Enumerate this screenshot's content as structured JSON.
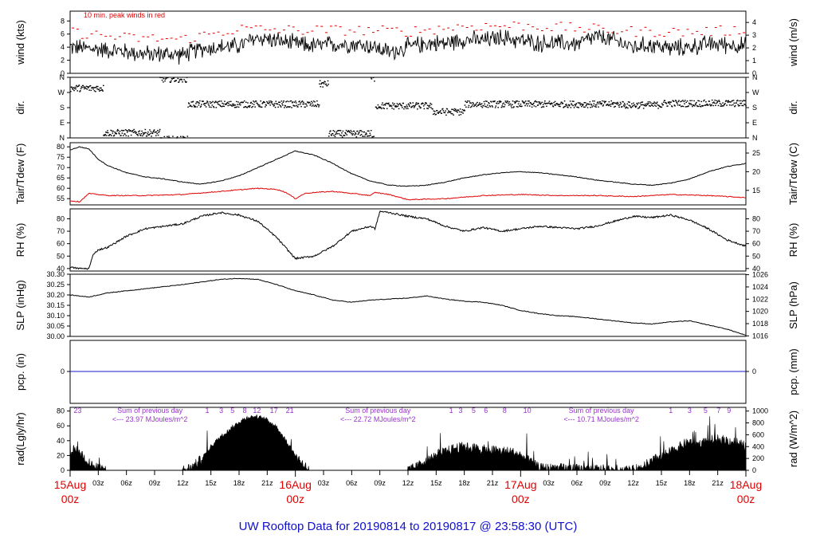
{
  "chart_data": {
    "type": "line",
    "title": "UW Rooftop Data for 20190814  to  20190817 @ 23:58:30  (UTC)",
    "x_hours_range": [
      0,
      72
    ],
    "x_ticks": [
      {
        "h": 3,
        "label": "03z"
      },
      {
        "h": 6,
        "label": "06z"
      },
      {
        "h": 9,
        "label": "09z"
      },
      {
        "h": 12,
        "label": "12z"
      },
      {
        "h": 15,
        "label": "15z"
      },
      {
        "h": 18,
        "label": "18z"
      },
      {
        "h": 21,
        "label": "21z"
      },
      {
        "h": 27,
        "label": "03z"
      },
      {
        "h": 30,
        "label": "06z"
      },
      {
        "h": 33,
        "label": "09z"
      },
      {
        "h": 36,
        "label": "12z"
      },
      {
        "h": 39,
        "label": "15z"
      },
      {
        "h": 42,
        "label": "18z"
      },
      {
        "h": 45,
        "label": "21z"
      },
      {
        "h": 51,
        "label": "03z"
      },
      {
        "h": 54,
        "label": "06z"
      },
      {
        "h": 57,
        "label": "09z"
      },
      {
        "h": 60,
        "label": "12z"
      },
      {
        "h": 63,
        "label": "15z"
      },
      {
        "h": 66,
        "label": "18z"
      },
      {
        "h": 69,
        "label": "21z"
      }
    ],
    "day_labels": [
      {
        "h": 0,
        "date": "15Aug",
        "time": "00z"
      },
      {
        "h": 24,
        "date": "16Aug",
        "time": "00z"
      },
      {
        "h": 48,
        "date": "17Aug",
        "time": "00z"
      },
      {
        "h": 72,
        "date": "18Aug",
        "time": "00z"
      }
    ],
    "panels": {
      "wind": {
        "ylabel_left": "wind (kts)",
        "ylabel_right": "wind (m/s)",
        "ylim": [
          0,
          9.5
        ],
        "left_ticks": [
          "0",
          "2",
          "4",
          "6",
          "8"
        ],
        "right_ticks": [
          "0",
          "1",
          "2",
          "3",
          "4"
        ],
        "note": "10 min. peak winds in red",
        "series": [
          {
            "name": "wind",
            "color": "#000000",
            "key_hours": [
              0,
              2,
              4,
              6,
              8,
              10,
              12,
              14,
              16,
              18,
              20,
              22,
              24,
              26,
              28,
              30,
              32,
              34,
              36,
              38,
              40,
              42,
              44,
              46,
              48,
              50,
              52,
              54,
              56,
              58,
              60,
              62,
              64,
              66,
              68,
              70,
              72
            ],
            "values": [
              4.0,
              3.8,
              3.6,
              3.3,
              2.9,
              3.0,
              2.8,
              3.8,
              4.0,
              4.2,
              5.5,
              5.0,
              4.5,
              4.2,
              4.4,
              4.5,
              4.2,
              3.2,
              4.0,
              4.6,
              4.6,
              5.2,
              5.0,
              5.5,
              5.0,
              4.6,
              4.6,
              4.5,
              5.6,
              5.0,
              4.0,
              4.4,
              3.8,
              4.0,
              4.5,
              4.4,
              4.2
            ]
          },
          {
            "name": "peak",
            "color": "#e00000",
            "key_hours": [
              0,
              6,
              12,
              18,
              24,
              30,
              36,
              42,
              48,
              54,
              60,
              66,
              72
            ],
            "values": [
              6.3,
              5.4,
              5.2,
              6.8,
              6.6,
              6.6,
              6.4,
              7.2,
              7.3,
              6.9,
              6.4,
              6.3,
              6.6
            ]
          }
        ]
      },
      "dir": {
        "ylabel_left": "dir.",
        "ylabel_right": "dir.",
        "ylim": [
          0,
          360
        ],
        "left_ticks": [
          "N",
          "E",
          "S",
          "W",
          "N"
        ],
        "right_ticks": [
          "N",
          "E",
          "S",
          "W",
          "N"
        ],
        "segments": [
          {
            "h0": 0.0,
            "h1": 3.5,
            "deg": 295
          },
          {
            "h0": 3.5,
            "h1": 9.5,
            "deg": 30
          },
          {
            "h0": 9.5,
            "h1": 12.5,
            "deg": 350
          },
          {
            "h0": 12.5,
            "h1": 26.5,
            "deg": 200
          },
          {
            "h0": 26.5,
            "h1": 27.5,
            "deg": 320
          },
          {
            "h0": 27.5,
            "h1": 32.0,
            "deg": 25
          },
          {
            "h0": 32.0,
            "h1": 32.4,
            "deg": 355
          },
          {
            "h0": 32.5,
            "h1": 38.5,
            "deg": 190
          },
          {
            "h0": 38.5,
            "h1": 42.0,
            "deg": 155
          },
          {
            "h0": 42.0,
            "h1": 59.0,
            "deg": 200
          },
          {
            "h0": 59.0,
            "h1": 63.0,
            "deg": 195
          },
          {
            "h0": 63.0,
            "h1": 72.0,
            "deg": 205
          }
        ]
      },
      "temp": {
        "ylabel_left": "Tair/Tdew (F)",
        "ylabel_right": "Tair/Tdew (C)",
        "ylim": [
          52,
          82
        ],
        "left_ticks": [
          "55",
          "60",
          "65",
          "70",
          "75",
          "80"
        ],
        "right_ticks": [
          "15",
          "20",
          "25"
        ],
        "series": [
          {
            "name": "Tair",
            "color": "#000000",
            "key_hours": [
              0,
              1,
              2,
              3,
              4,
              6,
              8,
              10,
              12,
              14,
              16,
              18,
              20,
              22,
              24,
              26,
              28,
              30,
              32,
              34,
              36,
              38,
              40,
              42,
              44,
              46,
              48,
              50,
              52,
              54,
              56,
              58,
              60,
              62,
              64,
              66,
              68,
              70,
              72
            ],
            "values": [
              78.5,
              80.0,
              79.0,
              74.0,
              71.0,
              67.5,
              65.5,
              64.5,
              63.0,
              62.0,
              63.5,
              66.0,
              70.0,
              74.0,
              78.0,
              76.0,
              72.0,
              67.0,
              63.5,
              61.5,
              61.0,
              61.5,
              63.0,
              65.0,
              66.5,
              67.5,
              68.0,
              67.5,
              66.5,
              65.5,
              64.0,
              63.0,
              62.0,
              61.5,
              62.5,
              64.5,
              68.0,
              70.5,
              72.0
            ]
          },
          {
            "name": "Tdew",
            "color": "#e00000",
            "key_hours": [
              0,
              1,
              2,
              4,
              8,
              12,
              16,
              20,
              22,
              23,
              24,
              25,
              26,
              28,
              30,
              32,
              32.5,
              34,
              36,
              40,
              44,
              48,
              52,
              56,
              60,
              64,
              68,
              72
            ],
            "values": [
              54.0,
              53.5,
              57.5,
              56.5,
              56.5,
              57.0,
              58.5,
              60.0,
              59.5,
              58.0,
              55.0,
              57.5,
              58.0,
              58.5,
              57.5,
              56.5,
              58.0,
              57.0,
              54.5,
              55.0,
              56.5,
              57.0,
              56.5,
              56.5,
              56.0,
              57.0,
              56.5,
              55.5
            ]
          }
        ]
      },
      "rh": {
        "ylabel_left": "RH (%)",
        "ylabel_right": "RH (%)",
        "ylim": [
          38,
          88
        ],
        "left_ticks": [
          "40",
          "50",
          "60",
          "70",
          "80"
        ],
        "right_ticks": [
          "40",
          "50",
          "60",
          "70",
          "80"
        ],
        "series": [
          {
            "name": "RH",
            "color": "#000000",
            "key_hours": [
              0,
              1,
              2,
              2.5,
              3,
              4,
              6,
              8,
              10,
              12,
              14,
              16,
              18,
              20,
              22,
              24,
              26,
              28,
              30,
              32,
              32.5,
              33,
              34,
              36,
              38,
              40,
              42,
              44,
              46,
              48,
              50,
              52,
              54,
              56,
              58,
              60,
              62,
              64,
              66,
              68,
              70,
              72
            ],
            "values": [
              41.0,
              40.0,
              40.0,
              52.0,
              55.0,
              57.0,
              66.0,
              72.0,
              74.0,
              76.0,
              82.0,
              85.0,
              83.0,
              78.0,
              65.0,
              48.0,
              50.0,
              58.0,
              70.0,
              74.0,
              72.0,
              86.0,
              85.0,
              82.0,
              80.0,
              74.0,
              70.0,
              73.0,
              70.0,
              72.0,
              74.0,
              73.0,
              72.0,
              74.0,
              78.0,
              82.0,
              81.0,
              83.0,
              79.0,
              72.0,
              63.0,
              58.0
            ]
          }
        ]
      },
      "slp": {
        "ylabel_left": "SLP (inHg)",
        "ylabel_right": "SLP (hPa)",
        "ylim": [
          30.0,
          30.3
        ],
        "left_ticks": [
          "30.00",
          "30.05",
          "30.10",
          "30.15",
          "30.20",
          "30.25",
          "30.30"
        ],
        "right_ticks": [
          "1016",
          "1018",
          "1020",
          "1022",
          "1024",
          "1026"
        ],
        "series": [
          {
            "name": "SLP",
            "color": "#000000",
            "key_hours": [
              0,
              2,
              4,
              8,
              12,
              16,
              18,
              20,
              22,
              24,
              26,
              28,
              30,
              32,
              34,
              36,
              38,
              40,
              42,
              44,
              46,
              48,
              50,
              52,
              54,
              56,
              58,
              60,
              62,
              64,
              66,
              68,
              70,
              72
            ],
            "values": [
              30.2,
              30.19,
              30.21,
              30.23,
              30.25,
              30.275,
              30.28,
              30.275,
              30.25,
              30.22,
              30.2,
              30.175,
              30.165,
              30.175,
              30.18,
              30.185,
              30.195,
              30.18,
              30.17,
              30.165,
              30.15,
              30.125,
              30.11,
              30.1,
              30.095,
              30.085,
              30.075,
              30.065,
              30.06,
              30.07,
              30.075,
              30.055,
              30.035,
              30.005
            ]
          }
        ]
      },
      "pcp": {
        "ylabel_left": "pcp. (in)",
        "ylabel_right": "pcp. (mm)",
        "left_ticks": [
          "0"
        ],
        "right_ticks": [
          "0"
        ],
        "value": 0,
        "line_color": "#1a1acc"
      },
      "rad": {
        "ylabel_left": "rad(Lgly/hr)",
        "ylabel_right": "rad (W/m^2)",
        "ylim": [
          0,
          85
        ],
        "left_ticks": [
          "0",
          "20",
          "40",
          "60",
          "80"
        ],
        "right_ticks": [
          "0",
          "200",
          "400",
          "600",
          "800",
          "1000"
        ],
        "day_hour_marks": [
          {
            "h": 0.8,
            "label": "23"
          },
          {
            "h": 14.6,
            "label": "1"
          },
          {
            "h": 16.1,
            "label": "3"
          },
          {
            "h": 17.3,
            "label": "5"
          },
          {
            "h": 18.6,
            "label": "8"
          },
          {
            "h": 19.9,
            "label": "12"
          },
          {
            "h": 21.7,
            "label": "17"
          },
          {
            "h": 23.4,
            "label": "21"
          },
          {
            "h": 40.6,
            "label": "1"
          },
          {
            "h": 41.6,
            "label": "3"
          },
          {
            "h": 43.0,
            "label": "5"
          },
          {
            "h": 44.3,
            "label": "6"
          },
          {
            "h": 46.3,
            "label": "8"
          },
          {
            "h": 48.7,
            "label": "10"
          },
          {
            "h": 64.0,
            "label": "1"
          },
          {
            "h": 66.0,
            "label": "3"
          },
          {
            "h": 67.7,
            "label": "5"
          },
          {
            "h": 69.1,
            "label": "7"
          },
          {
            "h": 70.2,
            "label": "9"
          }
        ],
        "sum_notes": [
          {
            "h": 8.5,
            "line1": "Sum of previous day",
            "line2": "<--- 23.97 MJoules/m^2"
          },
          {
            "h": 32.8,
            "line1": "Sum of previous day",
            "line2": "<--- 22.72 MJoules/m^2"
          },
          {
            "h": 56.6,
            "line1": "Sum of previous day",
            "line2": "<--- 10.71 MJoules/m^2"
          }
        ],
        "series": [
          {
            "name": "rad",
            "color": "#000000",
            "key_hours": [
              0,
              0.5,
              1,
              1.5,
              2,
              2.5,
              3,
              4,
              12,
              13,
              14,
              15,
              16,
              17,
              18,
              19,
              20,
              21,
              22,
              23,
              24,
              25,
              25.5,
              36,
              37,
              38,
              39,
              40,
              41,
              42,
              43,
              44,
              45,
              46,
              47,
              48,
              49,
              50,
              60,
              61,
              62,
              63,
              64,
              65,
              66,
              67,
              68,
              69,
              70,
              71,
              72
            ],
            "values": [
              22,
              28,
              25,
              18,
              10,
              5,
              2,
              0,
              0,
              4,
              15,
              32,
              45,
              55,
              65,
              72,
              72,
              68,
              58,
              40,
              20,
              6,
              0,
              0,
              5,
              15,
              20,
              25,
              30,
              32,
              30,
              28,
              27,
              26,
              25,
              20,
              12,
              3,
              0,
              5,
              12,
              20,
              25,
              32,
              38,
              35,
              40,
              42,
              40,
              38,
              32
            ]
          }
        ]
      }
    }
  }
}
